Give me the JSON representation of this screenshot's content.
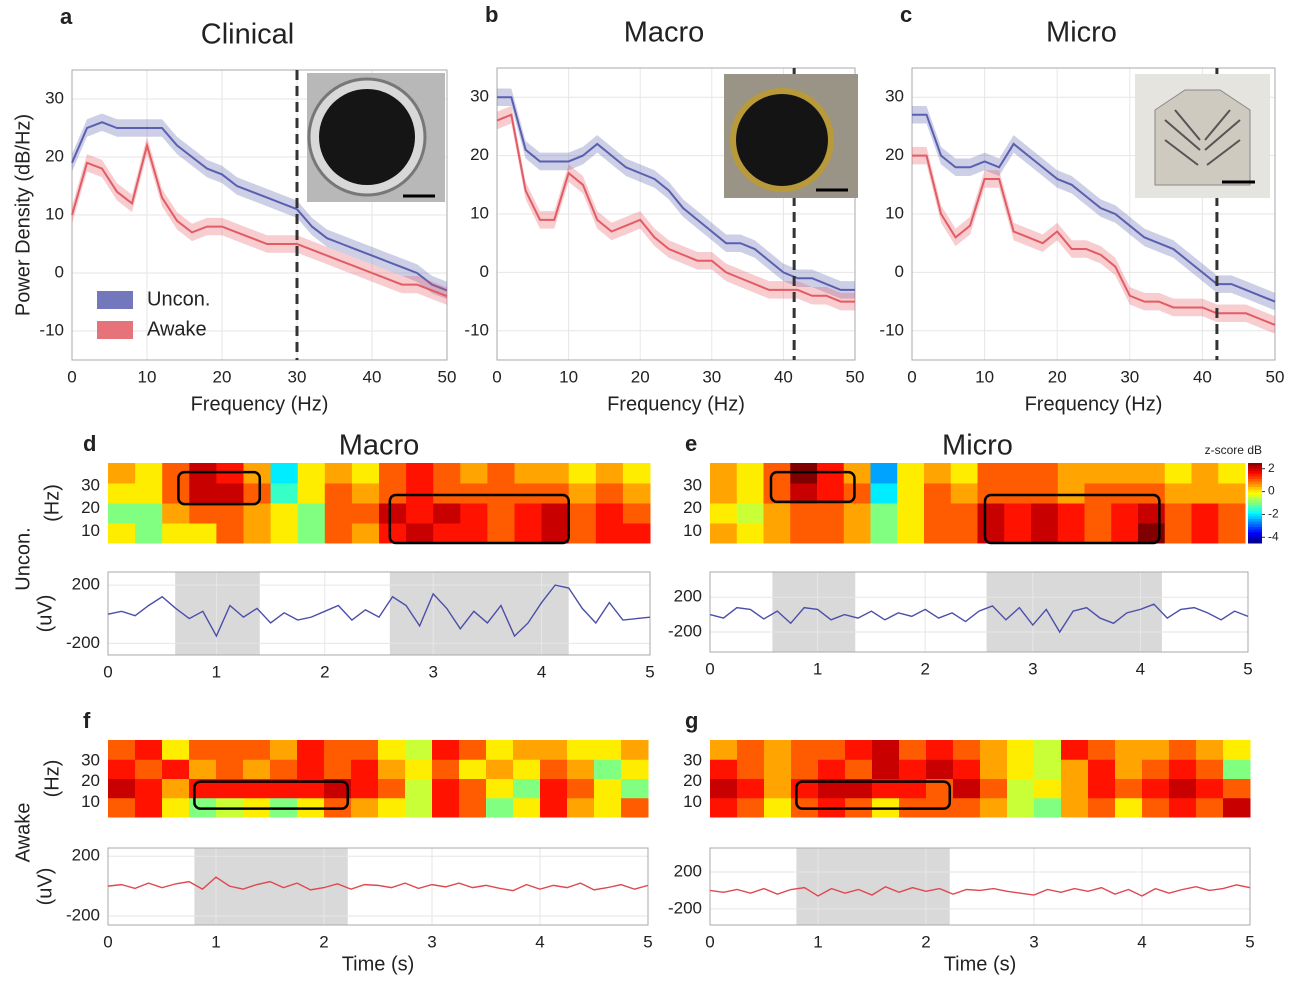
{
  "chart_data": [
    {
      "type": "line",
      "panel_label": "a",
      "title": "Clinical",
      "xlabel": "Frequency (Hz)",
      "ylabel": "Power Density (dB/Hz)",
      "x": [
        0,
        2,
        4,
        6,
        8,
        10,
        12,
        14,
        16,
        18,
        20,
        22,
        24,
        26,
        28,
        30,
        32,
        34,
        36,
        38,
        40,
        42,
        44,
        46,
        48,
        50
      ],
      "series": [
        {
          "name": "Uncon.",
          "color": "#5b5fb0",
          "error": 1.5,
          "values": [
            19,
            25,
            26,
            25,
            25,
            25,
            25,
            22,
            20,
            18,
            17,
            15,
            14,
            13,
            12,
            11,
            8,
            6,
            5,
            4,
            3,
            2,
            1,
            0,
            -2,
            -3
          ]
        },
        {
          "name": "Awake",
          "color": "#e35b63",
          "error": 1.5,
          "values": [
            10,
            19,
            18,
            14,
            12,
            22,
            13,
            9,
            7,
            8,
            8,
            7,
            6,
            5,
            5,
            5,
            4,
            3,
            2,
            1,
            0,
            -1,
            -2,
            -2,
            -3,
            -4
          ]
        }
      ],
      "xlim": [
        0,
        50
      ],
      "ylim": [
        -15,
        35
      ],
      "xticks": [
        0,
        10,
        20,
        30,
        40,
        50
      ],
      "yticks": [
        -10,
        0,
        10,
        20,
        30
      ],
      "marker_x": 30,
      "grid": true,
      "legend": "lower left"
    },
    {
      "type": "line",
      "panel_label": "b",
      "title": "Macro",
      "xlabel": "Frequency (Hz)",
      "x": [
        0,
        2,
        4,
        6,
        8,
        10,
        12,
        14,
        16,
        18,
        20,
        22,
        24,
        26,
        28,
        30,
        32,
        34,
        36,
        38,
        40,
        42,
        44,
        46,
        48,
        50
      ],
      "series": [
        {
          "color": "#5b5fb0",
          "error": 1.5,
          "values": [
            30,
            30,
            21,
            19,
            19,
            19,
            20,
            22,
            20,
            18,
            17,
            16,
            14,
            11,
            9,
            7,
            5,
            5,
            4,
            2,
            0,
            -1,
            -1,
            -2,
            -3,
            -3
          ]
        },
        {
          "color": "#e35b63",
          "error": 1.5,
          "values": [
            26,
            27,
            14,
            9,
            9,
            17,
            15,
            9,
            7,
            8,
            9,
            6,
            4,
            3,
            2,
            2,
            0,
            -1,
            -2,
            -3,
            -3,
            -3,
            -4,
            -4,
            -5,
            -5
          ]
        }
      ],
      "xlim": [
        0,
        50
      ],
      "ylim": [
        -15,
        35
      ],
      "xticks": [
        0,
        10,
        20,
        30,
        40,
        50
      ],
      "yticks": [
        -10,
        0,
        10,
        20,
        30
      ],
      "marker_x": 41.5,
      "grid": true
    },
    {
      "type": "line",
      "panel_label": "c",
      "title": "Micro",
      "xlabel": "Frequency (Hz)",
      "x": [
        0,
        2,
        4,
        6,
        8,
        10,
        12,
        14,
        16,
        18,
        20,
        22,
        24,
        26,
        28,
        30,
        32,
        34,
        36,
        38,
        40,
        42,
        44,
        46,
        48,
        50
      ],
      "series": [
        {
          "color": "#5b5fb0",
          "error": 1.5,
          "values": [
            27,
            27,
            20,
            18,
            18,
            19,
            18,
            22,
            20,
            18,
            16,
            15,
            13,
            11,
            10,
            8,
            6,
            5,
            4,
            2,
            0,
            -2,
            -2,
            -3,
            -4,
            -5
          ]
        },
        {
          "color": "#e35b63",
          "error": 1.5,
          "values": [
            20,
            20,
            10,
            6,
            8,
            16,
            16,
            7,
            6,
            5,
            7,
            4,
            4,
            3,
            1,
            -4,
            -5,
            -5,
            -6,
            -6,
            -6,
            -7,
            -7,
            -7,
            -8,
            -9
          ]
        }
      ],
      "xlim": [
        0,
        50
      ],
      "ylim": [
        -15,
        35
      ],
      "xticks": [
        0,
        10,
        20,
        30,
        40,
        50
      ],
      "yticks": [
        -10,
        0,
        10,
        20,
        30
      ],
      "marker_x": 42,
      "grid": true
    },
    {
      "type": "heatmap",
      "panel_label": "d",
      "title": "Macro",
      "row_label": "Uncon.",
      "ylabel": "(Hz)",
      "z": [
        [
          0,
          -1,
          0,
          0,
          1,
          0.5,
          0,
          -1,
          1,
          0.5,
          1.5,
          2,
          1.5,
          1.5,
          1,
          1.5,
          2,
          1,
          1.5,
          1.5
        ],
        [
          -1,
          -1,
          0.5,
          1,
          1,
          0.5,
          0,
          -1,
          1,
          1,
          2,
          1.5,
          2,
          1.5,
          1,
          1.5,
          2,
          1,
          1.5,
          1
        ],
        [
          0,
          0,
          1,
          2,
          2,
          1,
          -1.5,
          0,
          1,
          0.5,
          1,
          1.5,
          1,
          1,
          1,
          1,
          1,
          0.5,
          1,
          0.5
        ],
        [
          0.5,
          0,
          1,
          2,
          1.5,
          0.5,
          -2,
          0,
          0.5,
          0,
          1,
          1.5,
          1,
          0.5,
          1,
          0.5,
          0.5,
          0,
          0.5,
          0
        ]
      ],
      "xlim": [
        0,
        5
      ],
      "ylim": [
        5,
        40
      ],
      "yticks": [
        10,
        20,
        30
      ],
      "boxes": [
        {
          "x": [
            0.65,
            1.4
          ],
          "y": [
            22,
            36
          ]
        },
        {
          "x": [
            2.6,
            4.25
          ],
          "y": [
            5,
            26
          ]
        }
      ]
    },
    {
      "type": "line",
      "ylabel": "(uV)",
      "x": [
        0,
        0.125,
        0.25,
        0.375,
        0.5,
        0.625,
        0.75,
        0.875,
        1,
        1.125,
        1.25,
        1.375,
        1.5,
        1.625,
        1.75,
        1.875,
        2,
        2.125,
        2.25,
        2.375,
        2.5,
        2.625,
        2.75,
        2.875,
        3,
        3.125,
        3.25,
        3.375,
        3.5,
        3.625,
        3.75,
        3.875,
        4,
        4.125,
        4.25,
        4.375,
        4.5,
        4.625,
        4.75,
        4.875,
        5
      ],
      "series": [
        {
          "color": "#4b4fa8",
          "values": [
            0,
            20,
            -10,
            60,
            120,
            40,
            -30,
            20,
            -150,
            60,
            -20,
            40,
            -60,
            10,
            -40,
            -20,
            20,
            60,
            -40,
            30,
            -20,
            120,
            60,
            -80,
            140,
            40,
            -100,
            20,
            -60,
            60,
            -150,
            -60,
            80,
            200,
            180,
            40,
            -60,
            80,
            -40,
            -30,
            -20
          ]
        }
      ],
      "xlim": [
        0,
        5
      ],
      "ylim": [
        -280,
        290
      ],
      "xticks": [
        0,
        1,
        2,
        3,
        4,
        5
      ],
      "yticks": [
        -200,
        200
      ],
      "grid": true,
      "shade": [
        [
          0.62,
          1.4
        ],
        [
          2.6,
          4.25
        ]
      ]
    },
    {
      "type": "heatmap",
      "panel_label": "e",
      "title": "Micro",
      "z": [
        [
          0.5,
          0,
          0.5,
          1,
          1,
          0.5,
          -1,
          0,
          1,
          1,
          2,
          1.5,
          2,
          1.5,
          1,
          1.5,
          2.5,
          1,
          1.5,
          1
        ],
        [
          0,
          -0.5,
          0.5,
          1,
          1,
          0.5,
          -1,
          0,
          1,
          1,
          2,
          1.5,
          2,
          1.5,
          1,
          1.5,
          2,
          1,
          1.5,
          1
        ],
        [
          0.5,
          0,
          1,
          2,
          1.5,
          1,
          -2,
          0,
          1,
          0.5,
          1,
          1,
          1,
          0.5,
          1,
          1,
          1,
          0.5,
          0.5,
          0.5
        ],
        [
          0.5,
          0,
          1,
          2.5,
          1.5,
          0.5,
          -2.5,
          0,
          0.5,
          0,
          1,
          1,
          1,
          0.5,
          0.5,
          0.5,
          0.5,
          0,
          0.5,
          0
        ]
      ],
      "xlim": [
        0,
        5
      ],
      "ylim": [
        5,
        40
      ],
      "yticks": [
        10,
        20,
        30
      ],
      "boxes": [
        {
          "x": [
            0.57,
            1.35
          ],
          "y": [
            23,
            36
          ]
        },
        {
          "x": [
            2.57,
            4.2
          ],
          "y": [
            5,
            26
          ]
        }
      ],
      "colorbar": {
        "label": "z-score dB",
        "lim": [
          -4.5,
          2.5
        ],
        "ticks": [
          2,
          0,
          -2,
          -4
        ]
      }
    },
    {
      "type": "line",
      "x": [
        0,
        0.125,
        0.25,
        0.375,
        0.5,
        0.625,
        0.75,
        0.875,
        1,
        1.125,
        1.25,
        1.375,
        1.5,
        1.625,
        1.75,
        1.875,
        2,
        2.125,
        2.25,
        2.375,
        2.5,
        2.625,
        2.75,
        2.875,
        3,
        3.125,
        3.25,
        3.375,
        3.5,
        3.625,
        3.75,
        3.875,
        4,
        4.125,
        4.25,
        4.375,
        4.5,
        4.625,
        4.75,
        4.875,
        5
      ],
      "series": [
        {
          "color": "#4b4fa8",
          "values": [
            0,
            -40,
            80,
            60,
            -50,
            40,
            -100,
            80,
            60,
            -60,
            0,
            -40,
            40,
            -60,
            20,
            -20,
            60,
            -40,
            20,
            -80,
            40,
            100,
            -60,
            80,
            -120,
            60,
            -200,
            40,
            80,
            -40,
            -100,
            20,
            60,
            120,
            -40,
            60,
            80,
            20,
            -60,
            40,
            -20
          ]
        }
      ],
      "xlim": [
        0,
        5
      ],
      "ylim": [
        -430,
        490
      ],
      "xticks": [
        0,
        1,
        2,
        3,
        4,
        5
      ],
      "yticks": [
        -200,
        200
      ],
      "grid": true,
      "shade": [
        [
          0.58,
          1.35
        ],
        [
          2.57,
          4.2
        ]
      ]
    },
    {
      "type": "heatmap",
      "panel_label": "f",
      "row_label": "Awake",
      "ylabel": "(Hz)",
      "z": [
        [
          1,
          1.5,
          0,
          -1,
          -0.5,
          0,
          -1,
          0,
          1,
          0.5,
          0,
          -0.5,
          1.5,
          1,
          -1,
          0,
          1.5,
          0.5,
          0,
          1
        ],
        [
          2,
          1.5,
          0.5,
          1.5,
          1.5,
          1.5,
          1.5,
          1.5,
          2,
          1.5,
          1,
          -0.5,
          1.5,
          1,
          0,
          -1,
          1.5,
          1,
          0,
          -1
        ],
        [
          1.5,
          1,
          1.5,
          0.5,
          1,
          0.5,
          1,
          1.5,
          1,
          1.5,
          0.5,
          0,
          1,
          0,
          0.5,
          0,
          1,
          0.5,
          -1,
          0
        ],
        [
          1,
          1.5,
          0,
          1,
          1,
          1,
          0.5,
          1.5,
          1,
          1,
          0,
          -0.5,
          1.5,
          1,
          0,
          0.5,
          0.5,
          0,
          0,
          0.5
        ]
      ],
      "xlim": [
        0,
        5
      ],
      "ylim": [
        3,
        40
      ],
      "yticks": [
        10,
        20,
        30
      ],
      "boxes": [
        {
          "x": [
            0.8,
            2.22
          ],
          "y": [
            7,
            20
          ]
        }
      ]
    },
    {
      "type": "line",
      "ylabel": "(uV)",
      "xlabel": "Time (s)",
      "x": [
        0,
        0.125,
        0.25,
        0.375,
        0.5,
        0.625,
        0.75,
        0.875,
        1,
        1.125,
        1.25,
        1.375,
        1.5,
        1.625,
        1.75,
        1.875,
        2,
        2.125,
        2.25,
        2.375,
        2.5,
        2.625,
        2.75,
        2.875,
        3,
        3.125,
        3.25,
        3.375,
        3.5,
        3.625,
        3.75,
        3.875,
        4,
        4.125,
        4.25,
        4.375,
        4.5,
        4.625,
        4.75,
        4.875,
        5
      ],
      "series": [
        {
          "color": "#e0484f",
          "values": [
            0,
            10,
            -15,
            20,
            -10,
            15,
            30,
            -20,
            60,
            0,
            -20,
            10,
            30,
            -10,
            20,
            -25,
            -10,
            15,
            -20,
            10,
            5,
            -10,
            20,
            -15,
            10,
            -5,
            20,
            -10,
            5,
            -15,
            -30,
            10,
            -20,
            5,
            -10,
            20,
            -25,
            -10,
            10,
            -20,
            5
          ]
        }
      ],
      "xlim": [
        0,
        5
      ],
      "ylim": [
        -260,
        255
      ],
      "xticks": [
        0,
        1,
        2,
        3,
        4,
        5
      ],
      "yticks": [
        -200,
        200
      ],
      "grid": true,
      "shade": [
        [
          0.8,
          2.22
        ]
      ]
    },
    {
      "type": "heatmap",
      "panel_label": "g",
      "z": [
        [
          1.5,
          1,
          0,
          1,
          1.5,
          1,
          0,
          1,
          1,
          1,
          0.5,
          -0.5,
          -1,
          0.5,
          1,
          0,
          1,
          1.5,
          1,
          2
        ],
        [
          2,
          1.5,
          0.5,
          1.5,
          2,
          2,
          1.5,
          1.5,
          1,
          2,
          1,
          -0.5,
          0,
          0.5,
          1.5,
          1,
          1.5,
          2,
          1.5,
          1
        ],
        [
          1.5,
          1,
          0.5,
          1,
          1.5,
          1,
          2,
          1.5,
          2,
          1.5,
          0.5,
          0,
          -0.5,
          0.5,
          1.5,
          0.5,
          1,
          1.5,
          1,
          -1
        ],
        [
          0.5,
          1,
          0.5,
          1,
          1,
          1.5,
          2,
          1,
          1.5,
          1,
          0.5,
          0,
          -0.5,
          1.5,
          1,
          0.5,
          0.5,
          1,
          0.5,
          0
        ]
      ],
      "xlim": [
        0,
        5
      ],
      "ylim": [
        3,
        40
      ],
      "yticks": [
        10,
        20,
        30
      ],
      "boxes": [
        {
          "x": [
            0.8,
            2.22
          ],
          "y": [
            7,
            20
          ]
        }
      ]
    },
    {
      "type": "line",
      "xlabel": "Time (s)",
      "x": [
        0,
        0.125,
        0.25,
        0.375,
        0.5,
        0.625,
        0.75,
        0.875,
        1,
        1.125,
        1.25,
        1.375,
        1.5,
        1.625,
        1.75,
        1.875,
        2,
        2.125,
        2.25,
        2.375,
        2.5,
        2.625,
        2.75,
        2.875,
        3,
        3.125,
        3.25,
        3.375,
        3.5,
        3.625,
        3.75,
        3.875,
        4,
        4.125,
        4.25,
        4.375,
        4.5,
        4.625,
        4.75,
        4.875,
        5
      ],
      "series": [
        {
          "color": "#e0484f",
          "values": [
            0,
            -20,
            10,
            -30,
            20,
            -40,
            10,
            30,
            -60,
            20,
            -30,
            10,
            -50,
            40,
            -20,
            30,
            -10,
            20,
            -40,
            10,
            0,
            20,
            -10,
            -30,
            -50,
            10,
            -20,
            20,
            -10,
            30,
            -40,
            10,
            -60,
            20,
            -30,
            10,
            40,
            0,
            20,
            60,
            30
          ]
        }
      ],
      "xlim": [
        0,
        5
      ],
      "ylim": [
        -375,
        460
      ],
      "xticks": [
        0,
        1,
        2,
        3,
        4,
        5
      ],
      "yticks": [
        -200,
        200
      ],
      "grid": true,
      "shade": [
        [
          0.8,
          2.22
        ]
      ]
    }
  ]
}
